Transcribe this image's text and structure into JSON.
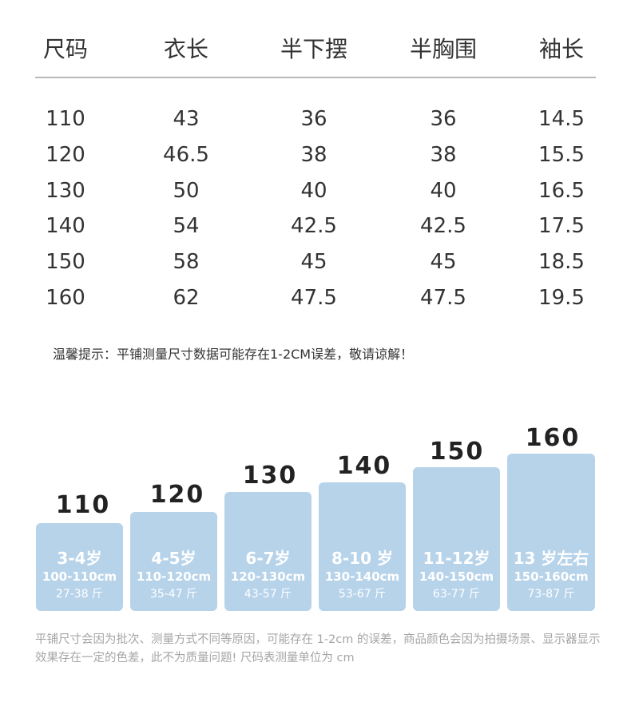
{
  "table": {
    "headers": [
      "尺码",
      "衣长",
      "半下摆",
      "半胸围",
      "袖长"
    ],
    "rows": [
      [
        "110",
        "43",
        "36",
        "36",
        "14.5"
      ],
      [
        "120",
        "46.5",
        "38",
        "38",
        "15.5"
      ],
      [
        "130",
        "50",
        "40",
        "40",
        "16.5"
      ],
      [
        "140",
        "54",
        "42.5",
        "42.5",
        "17.5"
      ],
      [
        "150",
        "58",
        "45",
        "45",
        "18.5"
      ],
      [
        "160",
        "62",
        "47.5",
        "47.5",
        "19.5"
      ]
    ]
  },
  "tip": "温馨提示：平铺测量尺寸数据可能存在1-2CM误差，敬请谅解！",
  "size_guide": [
    {
      "size": "110",
      "age": "3-4岁",
      "height": "100-110cm",
      "weight": "27-38 斤"
    },
    {
      "size": "120",
      "age": "4-5岁",
      "height": "110-120cm",
      "weight": "35-47 斤"
    },
    {
      "size": "130",
      "age": "6-7岁",
      "height": "120-130cm",
      "weight": "43-57 斤"
    },
    {
      "size": "140",
      "age": "8-10 岁",
      "height": "130-140cm",
      "weight": "53-67 斤"
    },
    {
      "size": "150",
      "age": "11-12岁",
      "height": "140-150cm",
      "weight": "63-77 斤"
    },
    {
      "size": "160",
      "age": "13 岁左右",
      "height": "150-160cm",
      "weight": "73-87 斤"
    }
  ],
  "footnote": "平铺尺寸会因为批次、测量方式不同等原因，可能存在 1-2cm 的误差，商品颜色会因为拍摄场景、显示器显示效果存在一定的色差，此不为质量问题! 尺码表测量单位为 cm",
  "colors": {
    "block": "#b7d3ea",
    "text": "#333333",
    "footnote": "#a5a5a5"
  }
}
